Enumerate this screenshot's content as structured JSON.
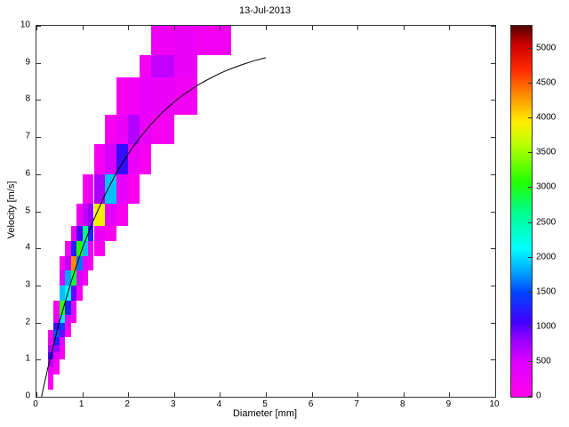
{
  "chart_data": {
    "type": "heatmap",
    "title": "13-Jul-2013",
    "xlabel": "Diameter [mm]",
    "ylabel": "Velocity [m/s]",
    "xlim": [
      0,
      10
    ],
    "ylim": [
      0,
      10
    ],
    "xticks": [
      0,
      1,
      2,
      3,
      4,
      5,
      6,
      7,
      8,
      9,
      10
    ],
    "yticks": [
      0,
      1,
      2,
      3,
      4,
      5,
      6,
      7,
      8,
      9,
      10
    ],
    "grid": false,
    "colorbar": {
      "min": 0,
      "max": 5333,
      "ticks": [
        0,
        500,
        1000,
        1500,
        2000,
        2500,
        3000,
        3500,
        4000,
        4500,
        5000
      ],
      "position": "right"
    },
    "colormap": [
      [
        0.0,
        "#ff00ea"
      ],
      [
        0.09,
        "#e100ff"
      ],
      [
        0.15,
        "#9b00ff"
      ],
      [
        0.2,
        "#4400ff"
      ],
      [
        0.28,
        "#0044ff"
      ],
      [
        0.34,
        "#00aaff"
      ],
      [
        0.4,
        "#00ffff"
      ],
      [
        0.5,
        "#00ff88"
      ],
      [
        0.58,
        "#22ff00"
      ],
      [
        0.68,
        "#bbff00"
      ],
      [
        0.74,
        "#ffee00"
      ],
      [
        0.81,
        "#ff9100"
      ],
      [
        0.88,
        "#ff2a00"
      ],
      [
        0.95,
        "#cc0000"
      ],
      [
        1.0,
        "#550000"
      ]
    ],
    "cells_format": [
      "d_min_mm",
      "d_max_mm",
      "v_min_ms",
      "v_max_ms",
      "count"
    ],
    "cells": [
      [
        0.25,
        0.375,
        0.2,
        0.4,
        80
      ],
      [
        0.25,
        0.375,
        0.4,
        0.6,
        150
      ],
      [
        0.25,
        0.375,
        0.6,
        0.8,
        320
      ],
      [
        0.25,
        0.375,
        0.8,
        1.0,
        650
      ],
      [
        0.25,
        0.375,
        1.0,
        1.2,
        1050
      ],
      [
        0.25,
        0.375,
        1.2,
        1.4,
        700
      ],
      [
        0.25,
        0.375,
        1.4,
        1.6,
        280
      ],
      [
        0.25,
        0.375,
        1.6,
        1.8,
        120
      ],
      [
        0.375,
        0.5,
        0.6,
        0.8,
        100
      ],
      [
        0.375,
        0.5,
        0.8,
        1.0,
        180
      ],
      [
        0.375,
        0.5,
        1.0,
        1.2,
        380
      ],
      [
        0.375,
        0.5,
        1.2,
        1.4,
        800
      ],
      [
        0.375,
        0.5,
        1.4,
        1.6,
        1250
      ],
      [
        0.375,
        0.5,
        1.6,
        1.8,
        1550
      ],
      [
        0.375,
        0.5,
        1.8,
        2.0,
        1150
      ],
      [
        0.375,
        0.5,
        2.0,
        2.2,
        420
      ],
      [
        0.375,
        0.5,
        2.2,
        2.6,
        150
      ],
      [
        0.5,
        0.625,
        1.0,
        1.2,
        90
      ],
      [
        0.5,
        0.625,
        1.2,
        1.4,
        160
      ],
      [
        0.5,
        0.625,
        1.4,
        1.6,
        420
      ],
      [
        0.5,
        0.625,
        1.6,
        1.8,
        950
      ],
      [
        0.5,
        0.625,
        1.8,
        2.0,
        1450
      ],
      [
        0.5,
        0.625,
        2.0,
        2.2,
        2050
      ],
      [
        0.5,
        0.625,
        2.2,
        2.6,
        3150
      ],
      [
        0.5,
        0.625,
        2.6,
        3.0,
        1900
      ],
      [
        0.5,
        0.625,
        3.0,
        3.4,
        520
      ],
      [
        0.5,
        0.625,
        3.4,
        3.8,
        150
      ],
      [
        0.625,
        0.75,
        1.6,
        1.8,
        110
      ],
      [
        0.625,
        0.75,
        1.8,
        2.0,
        260
      ],
      [
        0.625,
        0.75,
        2.0,
        2.2,
        520
      ],
      [
        0.625,
        0.75,
        2.2,
        2.6,
        1300
      ],
      [
        0.625,
        0.75,
        2.6,
        3.0,
        2100
      ],
      [
        0.625,
        0.75,
        3.0,
        3.4,
        1800
      ],
      [
        0.625,
        0.75,
        3.4,
        3.8,
        620
      ],
      [
        0.625,
        0.75,
        3.8,
        4.2,
        160
      ],
      [
        0.75,
        0.875,
        2.0,
        2.2,
        110
      ],
      [
        0.75,
        0.875,
        2.2,
        2.6,
        360
      ],
      [
        0.75,
        0.875,
        2.6,
        3.0,
        950
      ],
      [
        0.75,
        0.875,
        3.0,
        3.4,
        2900
      ],
      [
        0.75,
        0.875,
        3.4,
        3.8,
        4350
      ],
      [
        0.75,
        0.875,
        3.8,
        4.2,
        1250
      ],
      [
        0.75,
        0.875,
        4.2,
        4.6,
        320
      ],
      [
        0.875,
        1.0,
        2.6,
        3.0,
        160
      ],
      [
        0.875,
        1.0,
        3.0,
        3.4,
        520
      ],
      [
        0.875,
        1.0,
        3.4,
        3.8,
        1650
      ],
      [
        0.875,
        1.0,
        3.8,
        4.2,
        3100
      ],
      [
        0.875,
        1.0,
        4.2,
        4.6,
        1050
      ],
      [
        0.875,
        1.0,
        4.6,
        5.2,
        260
      ],
      [
        1.0,
        1.125,
        3.0,
        3.4,
        160
      ],
      [
        1.0,
        1.125,
        3.4,
        3.8,
        420
      ],
      [
        1.0,
        1.125,
        3.8,
        4.2,
        1900
      ],
      [
        1.0,
        1.125,
        4.2,
        4.6,
        2650
      ],
      [
        1.0,
        1.125,
        4.6,
        5.2,
        620
      ],
      [
        1.0,
        1.125,
        5.2,
        6.0,
        130
      ],
      [
        1.125,
        1.25,
        3.4,
        3.8,
        130
      ],
      [
        1.125,
        1.25,
        3.8,
        4.2,
        360
      ],
      [
        1.125,
        1.25,
        4.2,
        4.6,
        1300
      ],
      [
        1.125,
        1.25,
        4.6,
        5.2,
        820
      ],
      [
        1.125,
        1.25,
        5.2,
        6.0,
        210
      ],
      [
        1.25,
        1.5,
        3.8,
        4.2,
        110
      ],
      [
        1.25,
        1.5,
        4.2,
        4.6,
        320
      ],
      [
        1.25,
        1.5,
        4.6,
        5.2,
        3900
      ],
      [
        1.25,
        1.5,
        5.2,
        6.0,
        720
      ],
      [
        1.25,
        1.5,
        6.0,
        6.8,
        150
      ],
      [
        1.5,
        1.75,
        4.2,
        4.6,
        110
      ],
      [
        1.5,
        1.75,
        4.6,
        5.2,
        420
      ],
      [
        1.5,
        1.75,
        5.2,
        6.0,
        1900
      ],
      [
        1.5,
        1.75,
        6.0,
        6.8,
        520
      ],
      [
        1.5,
        1.75,
        6.8,
        7.6,
        130
      ],
      [
        1.75,
        2.0,
        4.6,
        5.2,
        100
      ],
      [
        1.75,
        2.0,
        5.2,
        6.0,
        360
      ],
      [
        1.75,
        2.0,
        6.0,
        6.8,
        1150
      ],
      [
        1.75,
        2.0,
        6.8,
        7.6,
        320
      ],
      [
        1.75,
        2.0,
        7.6,
        8.6,
        100
      ],
      [
        2.0,
        2.25,
        5.2,
        6.0,
        90
      ],
      [
        2.0,
        2.25,
        6.0,
        6.8,
        320
      ],
      [
        2.0,
        2.25,
        6.8,
        7.6,
        680
      ],
      [
        2.0,
        2.25,
        7.6,
        8.6,
        210
      ],
      [
        2.25,
        2.5,
        6.0,
        6.8,
        110
      ],
      [
        2.25,
        2.5,
        6.8,
        7.6,
        320
      ],
      [
        2.25,
        2.5,
        7.6,
        8.6,
        360
      ],
      [
        2.25,
        2.5,
        8.6,
        9.2,
        160
      ],
      [
        2.5,
        3.0,
        6.8,
        7.6,
        160
      ],
      [
        2.5,
        3.0,
        7.6,
        8.6,
        320
      ],
      [
        2.5,
        3.0,
        8.6,
        9.2,
        620
      ],
      [
        2.5,
        3.0,
        9.2,
        10,
        260
      ],
      [
        3.0,
        3.5,
        7.6,
        8.6,
        210
      ],
      [
        3.0,
        3.5,
        8.6,
        9.2,
        320
      ],
      [
        3.0,
        3.5,
        9.2,
        10,
        310
      ],
      [
        3.5,
        4.25,
        9.2,
        10,
        210
      ]
    ],
    "curve": {
      "name": "terminal-velocity-fit",
      "color": "#000000",
      "points": [
        [
          0.11,
          0.0
        ],
        [
          0.25,
          0.79
        ],
        [
          0.5,
          2.02
        ],
        [
          0.75,
          3.08
        ],
        [
          1.0,
          4.0
        ],
        [
          1.25,
          4.78
        ],
        [
          1.5,
          5.46
        ],
        [
          1.75,
          6.05
        ],
        [
          2.0,
          6.55
        ],
        [
          2.25,
          6.98
        ],
        [
          2.5,
          7.35
        ],
        [
          2.75,
          7.67
        ],
        [
          3.0,
          7.95
        ],
        [
          3.25,
          8.18
        ],
        [
          3.5,
          8.39
        ],
        [
          3.75,
          8.56
        ],
        [
          4.0,
          8.72
        ],
        [
          4.25,
          8.85
        ],
        [
          4.5,
          8.96
        ],
        [
          4.75,
          9.06
        ],
        [
          5.0,
          9.14
        ]
      ]
    }
  }
}
